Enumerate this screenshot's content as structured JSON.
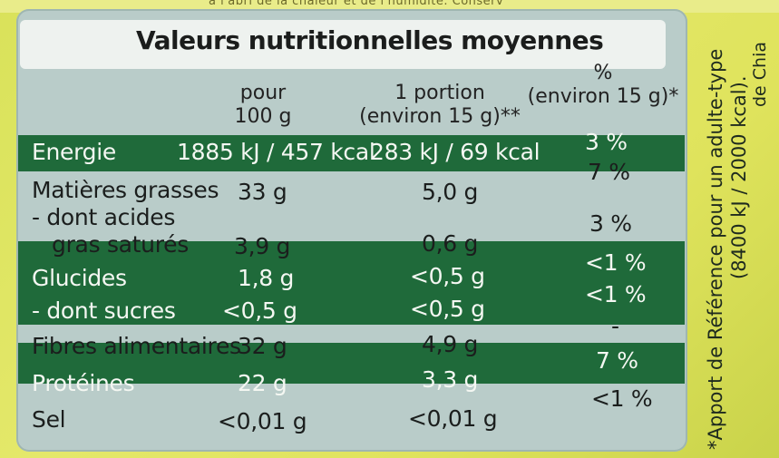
{
  "title": "Valeurs nutritionnelles moyennes",
  "top_text": "à l'abri de la chaleur et de l'humidité. Conserv",
  "headers": {
    "col1_line1": "pour",
    "col1_line2": "100 g",
    "col2_line1": "1 portion",
    "col2_line2": "(environ 15 g)**",
    "col3_line1": "%",
    "col3_line2": "(environ 15 g)*"
  },
  "rows": [
    {
      "label": "Energie",
      "per100": "1885 kJ / 457 kcal",
      "portion": "283 kJ / 69 kcal",
      "pct": "3 %"
    },
    {
      "label": "Matières grasses",
      "per100": "33 g",
      "portion": "5,0 g",
      "pct": "7 %"
    },
    {
      "label": "- dont acides",
      "label2": "gras saturés",
      "per100": "3,9 g",
      "portion": "0,6 g",
      "pct": "3 %"
    },
    {
      "label": "Glucides",
      "per100": "1,8 g",
      "portion": "<0,5 g",
      "pct": "<1 %"
    },
    {
      "label": "- dont sucres",
      "per100": "<0,5 g",
      "portion": "<0,5 g",
      "pct": "<1 %"
    },
    {
      "label": "Fibres alimentaires",
      "per100": "32 g",
      "portion": "4,9 g",
      "pct": "-"
    },
    {
      "label": "Protéines",
      "per100": "22 g",
      "portion": "3,3 g",
      "pct": "7 %"
    },
    {
      "label": "Sel",
      "per100": "<0,01 g",
      "portion": "<0,01 g",
      "pct": "<1 %"
    }
  ],
  "side_note": {
    "line1": "*Apport de Référence pour un adulte-type",
    "line2": "(8400 kJ / 2000 kcal).",
    "line3": "de Chia"
  },
  "colors": {
    "band": "#1f6a3a",
    "panel": "#b9ccc9",
    "background": "#dfe35c"
  }
}
